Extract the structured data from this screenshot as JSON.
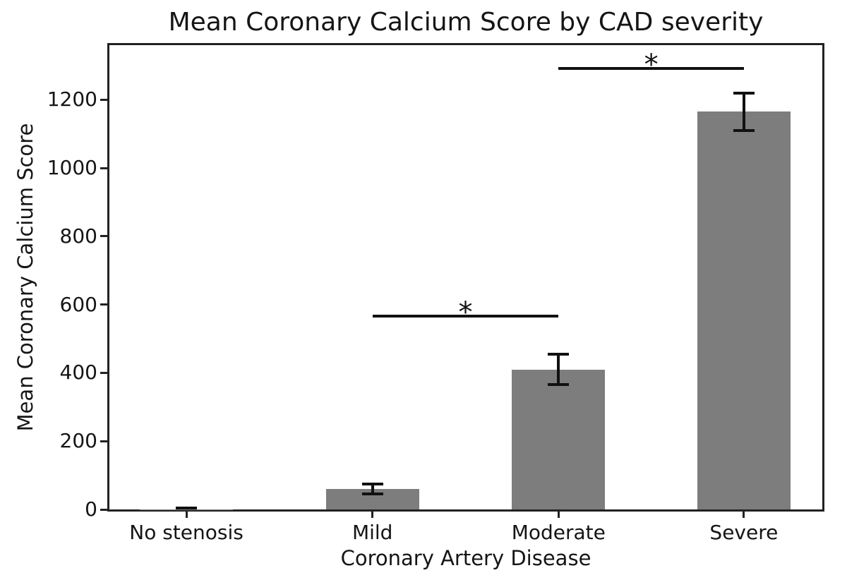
{
  "chart_data": {
    "type": "bar",
    "title": "Mean Coronary Calcium Score by CAD severity",
    "xlabel": "Coronary Artery Disease",
    "ylabel": "Mean Coronary Calcium Score",
    "categories": [
      "No stenosis",
      "Mild",
      "Moderate",
      "Severe"
    ],
    "values": [
      1,
      60,
      410,
      1165
    ],
    "error_bars": [
      4,
      15,
      45,
      55
    ],
    "yticks": [
      0,
      200,
      400,
      600,
      800,
      1000,
      1200
    ],
    "ylim": [
      0,
      1360
    ],
    "grid": false,
    "legend": "none",
    "bar_color": "#7d7d7d",
    "error_color": "#111111",
    "axis_color": "#222222",
    "significance_brackets": [
      {
        "from": "Mild",
        "to": "Moderate",
        "label": "*",
        "line_y": 566
      },
      {
        "from": "Moderate",
        "to": "Severe",
        "label": "*",
        "line_y": 1291
      }
    ]
  }
}
